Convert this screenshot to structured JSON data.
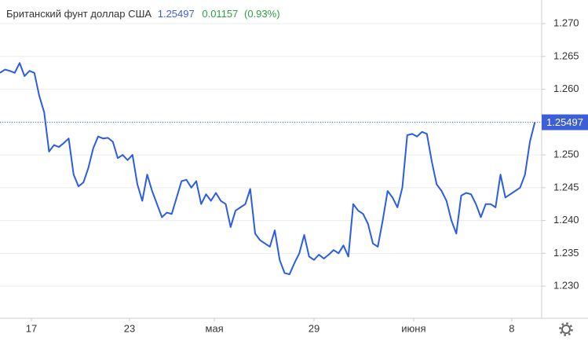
{
  "chart_data": {
    "type": "line",
    "title": "Британский фунт доллар США",
    "price": 1.25497,
    "change": 0.01157,
    "change_pct": {
      "value": 0.93,
      "label": "(0.93%)"
    },
    "color": "#2b5ce6",
    "up_color": "#2ea043",
    "price_color": "#3c5fd8",
    "grid": true,
    "values": [
      1.2625,
      1.263,
      1.2628,
      1.2625,
      1.264,
      1.262,
      1.2628,
      1.2625,
      1.259,
      1.2565,
      1.2505,
      1.2515,
      1.2512,
      1.2518,
      1.2525,
      1.247,
      1.2452,
      1.2458,
      1.248,
      1.251,
      1.2528,
      1.2525,
      1.2526,
      1.252,
      1.2495,
      1.25,
      1.2492,
      1.25,
      1.2455,
      1.243,
      1.247,
      1.2445,
      1.2425,
      1.2405,
      1.2412,
      1.241,
      1.2435,
      1.246,
      1.2462,
      1.245,
      1.246,
      1.2425,
      1.244,
      1.243,
      1.2442,
      1.243,
      1.2425,
      1.239,
      1.2415,
      1.242,
      1.2425,
      1.2448,
      1.238,
      1.237,
      1.2365,
      1.236,
      1.2385,
      1.234,
      1.232,
      1.2318,
      1.2335,
      1.235,
      1.2378,
      1.2345,
      1.234,
      1.2348,
      1.2342,
      1.2348,
      1.2355,
      1.235,
      1.2362,
      1.2345,
      1.2425,
      1.2415,
      1.241,
      1.2395,
      1.2365,
      1.236,
      1.24,
      1.2445,
      1.2435,
      1.242,
      1.245,
      1.253,
      1.2532,
      1.2528,
      1.2535,
      1.2532,
      1.249,
      1.2455,
      1.2445,
      1.243,
      1.24,
      1.238,
      1.2438,
      1.2442,
      1.244,
      1.2425,
      1.2405,
      1.2425,
      1.2425,
      1.242,
      1.247,
      1.2435,
      1.244,
      1.2445,
      1.245,
      1.247,
      1.252,
      1.25497
    ],
    "xlim": [
      0,
      109
    ],
    "xticks": [
      {
        "value": 6.4,
        "label": "17"
      },
      {
        "value": 26.4,
        "label": "23"
      },
      {
        "value": 43.7,
        "label": "мая"
      },
      {
        "value": 64,
        "label": "29"
      },
      {
        "value": 84.3,
        "label": "июня"
      },
      {
        "value": 104.3,
        "label": "8"
      }
    ],
    "ylim": [
      1.2251,
      1.2736
    ],
    "yticks": [
      {
        "value": 1.23,
        "label": "1.230"
      },
      {
        "value": 1.235,
        "label": "1.235"
      },
      {
        "value": 1.24,
        "label": "1.240"
      },
      {
        "value": 1.245,
        "label": "1.245"
      },
      {
        "value": 1.25,
        "label": "1.250"
      },
      {
        "value": 1.255,
        "label": "1.255"
      },
      {
        "value": 1.26,
        "label": "1.260"
      },
      {
        "value": 1.265,
        "label": "1.265"
      },
      {
        "value": 1.27,
        "label": "1.270"
      }
    ]
  }
}
